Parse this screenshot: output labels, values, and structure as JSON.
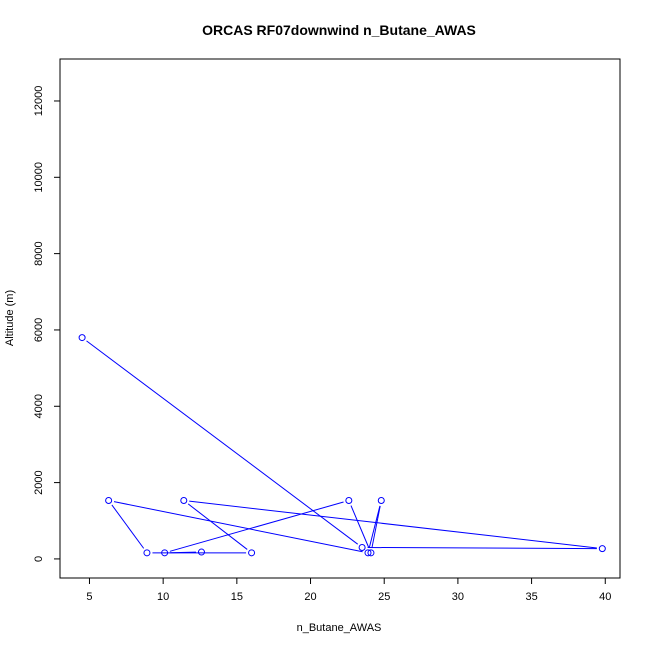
{
  "chart_data": {
    "type": "line",
    "title": "ORCAS RF07downwind n_Butane_AWAS",
    "xlabel": "n_Butane_AWAS",
    "ylabel": "Altitude (m)",
    "xlim": [
      3,
      41
    ],
    "ylim": [
      -500,
      13100
    ],
    "xticks": [
      "5",
      "10",
      "15",
      "20",
      "25",
      "30",
      "35",
      "40"
    ],
    "yticks": [
      "0",
      "2000",
      "4000",
      "6000",
      "8000",
      "10000",
      "12000"
    ],
    "grid": false,
    "series": [
      {
        "color": "#0000ff",
        "markers": "open-circle",
        "points": [
          {
            "x": 4.5,
            "y": 5800
          },
          {
            "x": 23.5,
            "y": 300
          },
          {
            "x": 39.8,
            "y": 270
          },
          {
            "x": 11.4,
            "y": 1530
          },
          {
            "x": 16.0,
            "y": 160
          },
          {
            "x": 8.9,
            "y": 160
          },
          {
            "x": 6.3,
            "y": 1530
          },
          {
            "x": 23.9,
            "y": 160
          },
          {
            "x": 24.8,
            "y": 1530
          },
          {
            "x": 24.1,
            "y": 160
          },
          {
            "x": 22.6,
            "y": 1530
          },
          {
            "x": 10.1,
            "y": 160
          },
          {
            "x": 12.6,
            "y": 180
          }
        ]
      }
    ]
  }
}
